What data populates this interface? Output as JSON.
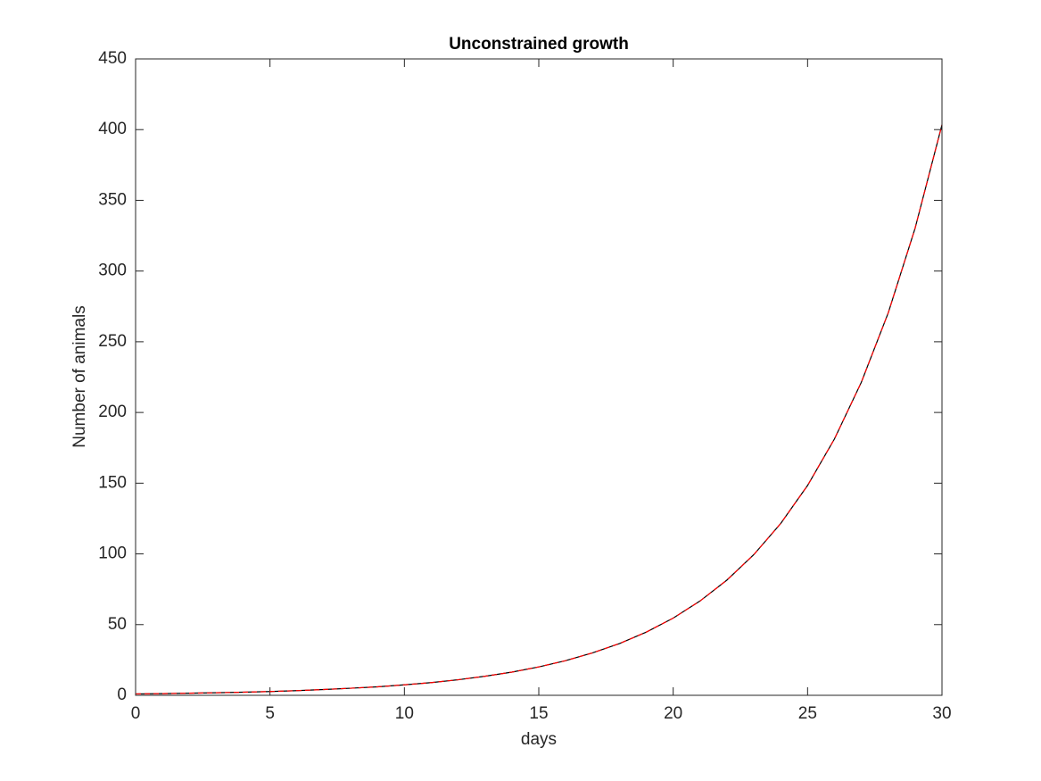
{
  "chart_data": {
    "type": "line",
    "title": "Unconstrained growth",
    "x_label": "days",
    "y_label": "Number of animals",
    "x": [
      0,
      1,
      2,
      3,
      4,
      5,
      6,
      7,
      8,
      9,
      10,
      11,
      12,
      13,
      14,
      15,
      16,
      17,
      18,
      19,
      20,
      21,
      22,
      23,
      24,
      25,
      26,
      27,
      28,
      29,
      30
    ],
    "series": [
      {
        "color": "#000000",
        "dash": "solid",
        "values": [
          1,
          1.2,
          1.5,
          1.8,
          2.2,
          2.7,
          3.3,
          4.1,
          5.0,
          6.0,
          7.4,
          9.0,
          11.0,
          13.5,
          16.4,
          20.1,
          24.5,
          30.0,
          36.6,
          44.7,
          54.6,
          66.7,
          81.5,
          99.5,
          121.5,
          148.4,
          181.3,
          221.4,
          270.4,
          330.3,
          403.4
        ]
      },
      {
        "color": "#ff0000",
        "dash": "dashed",
        "values": [
          1,
          1.2,
          1.5,
          1.8,
          2.2,
          2.7,
          3.3,
          4.1,
          5.0,
          6.0,
          7.4,
          9.0,
          11.0,
          13.5,
          16.4,
          20.1,
          24.5,
          30.0,
          36.6,
          44.7,
          54.6,
          66.7,
          81.5,
          99.5,
          121.5,
          148.4,
          181.3,
          221.4,
          270.4,
          330.3,
          403.4
        ]
      }
    ],
    "xlim": [
      0,
      30
    ],
    "xticks": [
      0,
      5,
      10,
      15,
      20,
      25,
      30
    ],
    "ylim": [
      0,
      450
    ],
    "yticks": [
      0,
      50,
      100,
      150,
      200,
      250,
      300,
      350,
      400,
      450
    ],
    "grid": false
  }
}
